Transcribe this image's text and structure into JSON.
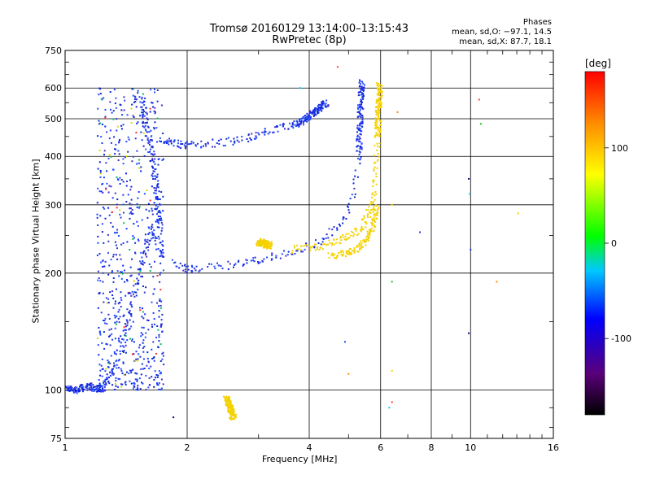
{
  "header": {
    "title_line1": "Tromsø 20160129 13:14:00–13:15:43",
    "title_line2": "RwPretec (8p)",
    "phases_title": "Phases",
    "phases_o": "mean, sd,O: −97.1, 14.5",
    "phases_x": "mean, sd,X: 87.7, 18.1"
  },
  "chart_data": {
    "type": "scatter",
    "xlabel": "Frequency [MHz]",
    "ylabel": "Stationary phase Virtual Height [km]",
    "x_scale": "log",
    "y_scale": "log",
    "xlim": [
      1,
      16
    ],
    "ylim": [
      75,
      750
    ],
    "x_ticks": [
      1,
      2,
      4,
      6,
      8,
      10,
      16
    ],
    "x_tick_labels": [
      "1",
      "2",
      "4",
      "6",
      "8",
      "10",
      "16"
    ],
    "x_minor_ticks": [
      3,
      5,
      7,
      9,
      11,
      12,
      13,
      14,
      15
    ],
    "y_ticks": [
      75,
      100,
      200,
      300,
      400,
      500,
      600,
      750
    ],
    "y_tick_labels": [
      "75",
      "100",
      "200",
      "300",
      "400",
      "500",
      "600",
      "750"
    ],
    "y_minor_ticks": [
      80,
      90,
      150,
      250,
      350,
      450,
      550,
      650,
      700
    ],
    "grid": true,
    "colorbar": {
      "label": "[deg]",
      "range": [
        -180,
        180
      ],
      "ticks": [
        100,
        0,
        -100
      ],
      "tick_labels": [
        "100",
        "0",
        "-100"
      ]
    },
    "series": [
      {
        "mode": "O",
        "color": "#1a3cff",
        "phase_deg": -97.1,
        "traces": [
          {
            "x": [
              1.0,
              1.05,
              1.1,
              1.15,
              1.2,
              1.25
            ],
            "y": [
              101,
              100,
              101,
              102,
              100,
              101
            ]
          },
          {
            "x": [
              1.2,
              1.25,
              1.3,
              1.35,
              1.4,
              1.45,
              1.5,
              1.55,
              1.6,
              1.65,
              1.7,
              1.75
            ],
            "y": [
              100,
              104,
              110,
              120,
              140,
              165,
              190,
              215,
              240,
              260,
              235,
              220
            ]
          },
          {
            "x": [
              1.55,
              1.58,
              1.62,
              1.65,
              1.68,
              1.7,
              1.72
            ],
            "y": [
              560,
              500,
              440,
              380,
              330,
              290,
              260
            ]
          },
          {
            "x": [
              1.85,
              1.95,
              2.0,
              2.1,
              2.3,
              2.5,
              2.7,
              2.9,
              3.1,
              3.3,
              3.6,
              3.9,
              4.2,
              4.5,
              4.8,
              5.0,
              5.2,
              5.3
            ],
            "y": [
              212,
              206,
              204,
              205,
              207,
              209,
              212,
              215,
              218,
              221,
              226,
              232,
              240,
              252,
              268,
              290,
              330,
              400
            ]
          },
          {
            "x": [
              5.3,
              5.32,
              5.35,
              5.38,
              5.4
            ],
            "y": [
              400,
              460,
              520,
              580,
              620
            ]
          },
          {
            "x": [
              1.72,
              1.8,
              1.9,
              2.0,
              2.2,
              2.5,
              2.8,
              3.0,
              3.3,
              3.6,
              3.8
            ],
            "y": [
              440,
              435,
              430,
              428,
              430,
              435,
              445,
              455,
              470,
              480,
              490
            ]
          },
          {
            "x": [
              3.8,
              4.0,
              4.2,
              4.4
            ],
            "y": [
              490,
              510,
              530,
              550
            ]
          }
        ],
        "spread": {
          "x": [
            1.2,
            1.75
          ],
          "y": [
            100,
            600
          ],
          "count": 700
        }
      },
      {
        "mode": "X",
        "color": "#f2d200",
        "phase_deg": 87.7,
        "traces": [
          {
            "x": [
              3.6,
              4.0,
              4.4,
              4.8,
              5.1,
              5.4,
              5.6,
              5.75,
              5.85,
              5.9
            ],
            "y": [
              230,
              232,
              236,
              243,
              252,
              265,
              285,
              320,
              380,
              450
            ]
          },
          {
            "x": [
              5.9,
              5.92,
              5.95,
              5.97
            ],
            "y": [
              450,
              500,
              560,
              610
            ]
          },
          {
            "x": [
              4.5,
              4.9,
              5.2,
              5.5,
              5.7,
              5.8,
              5.85
            ],
            "y": [
              222,
              225,
              230,
              240,
              255,
              275,
              300
            ]
          },
          {
            "x": [
              3.0,
              3.1,
              3.2
            ],
            "y": [
              240,
              238,
              236
            ]
          },
          {
            "x": [
              2.5,
              2.55,
              2.6
            ],
            "y": [
              95,
              90,
              85
            ]
          }
        ]
      }
    ],
    "isolated_points": [
      {
        "x": 6.4,
        "y": 300
      },
      {
        "x": 6.6,
        "y": 520
      },
      {
        "x": 7.5,
        "y": 255
      },
      {
        "x": 9.9,
        "y": 350
      },
      {
        "x": 9.95,
        "y": 320
      },
      {
        "x": 10.5,
        "y": 560
      },
      {
        "x": 10.6,
        "y": 485
      },
      {
        "x": 13.1,
        "y": 285
      },
      {
        "x": 11.6,
        "y": 190
      },
      {
        "x": 10.0,
        "y": 230
      },
      {
        "x": 9.9,
        "y": 140
      },
      {
        "x": 6.3,
        "y": 90
      },
      {
        "x": 6.4,
        "y": 93
      },
      {
        "x": 6.4,
        "y": 190
      },
      {
        "x": 6.4,
        "y": 112
      },
      {
        "x": 5.0,
        "y": 110
      },
      {
        "x": 4.9,
        "y": 133
      },
      {
        "x": 1.85,
        "y": 85
      },
      {
        "x": 3.8,
        "y": 600
      },
      {
        "x": 4.7,
        "y": 680
      }
    ]
  }
}
